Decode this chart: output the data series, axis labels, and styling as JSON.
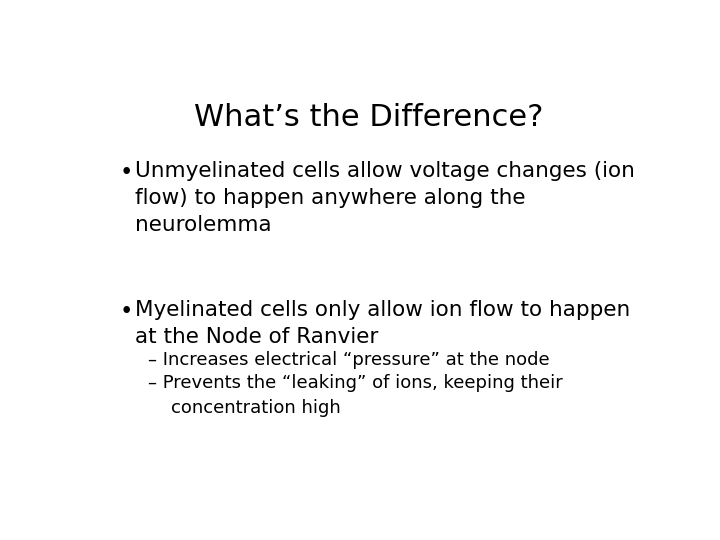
{
  "title": "What’s the Difference?",
  "title_fontsize": 22,
  "title_color": "#000000",
  "background_color": "#ffffff",
  "bullet1_main": "Unmyelinated cells allow voltage changes (ion\nflow) to happen anywhere along the\nneurolemma",
  "bullet2_main": "Myelinated cells only allow ion flow to happen\nat the Node of Ranvier",
  "sub1": "– Increases electrical “pressure” at the node",
  "sub2": "– Prevents the “leaking” of ions, keeping their\n    concentration high",
  "bullet_fontsize": 15.5,
  "sub_fontsize": 13,
  "text_color": "#000000",
  "font_family": "DejaVu Sans"
}
